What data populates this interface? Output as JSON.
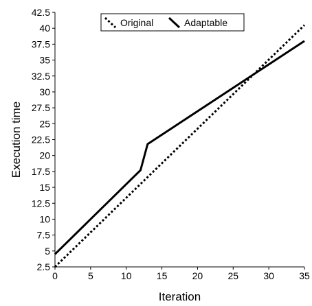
{
  "chart_data": {
    "type": "line",
    "title": "",
    "xlabel": "Iteration",
    "ylabel": "Execution time",
    "xlim": [
      0,
      35
    ],
    "ylim": [
      2.5,
      42.5
    ],
    "x_ticks": [
      "0",
      "5",
      "10",
      "15",
      "20",
      "25",
      "30",
      "35"
    ],
    "y_ticks": [
      "2.5",
      "5",
      "7.5",
      "10",
      "12.5",
      "15",
      "17.5",
      "20",
      "22.5",
      "25",
      "27.5",
      "30",
      "32.5",
      "35",
      "37.5",
      "40",
      "42.5"
    ],
    "grid": false,
    "legend_position": "top-center",
    "series": [
      {
        "name": "Original",
        "style": "dotted",
        "color": "#000000",
        "x": [
          0,
          35
        ],
        "y": [
          2.5,
          40.5
        ]
      },
      {
        "name": "Adaptable",
        "style": "solid",
        "color": "#000000",
        "x": [
          0,
          12,
          13,
          35
        ],
        "y": [
          4.5,
          17.7,
          21.8,
          38
        ]
      }
    ]
  }
}
